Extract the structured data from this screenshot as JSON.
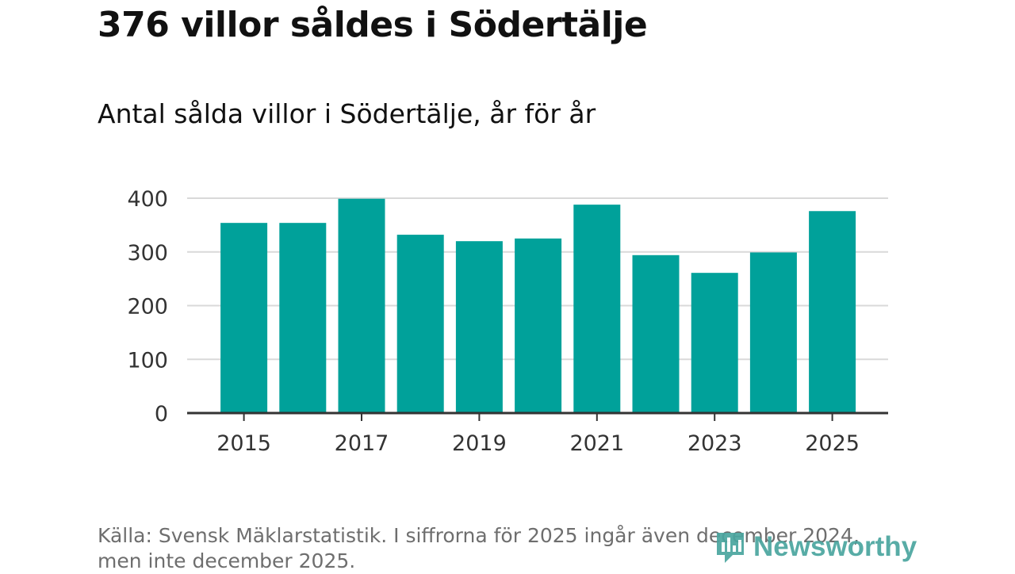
{
  "header": {
    "title": "376 villor såldes i Södertälje",
    "subtitle": "Antal sålda villor i Södertälje, år för år"
  },
  "chart_data": {
    "type": "bar",
    "categories": [
      "2015",
      "2016",
      "2017",
      "2018",
      "2019",
      "2020",
      "2021",
      "2022",
      "2023",
      "2024",
      "2025"
    ],
    "values": [
      354,
      354,
      399,
      332,
      320,
      325,
      388,
      294,
      261,
      299,
      376
    ],
    "x_tick_labels": [
      "2015",
      "2017",
      "2019",
      "2021",
      "2023",
      "2025"
    ],
    "y_ticks": [
      0,
      100,
      200,
      300,
      400
    ],
    "ylim": [
      0,
      400
    ],
    "grid": true,
    "bar_color": "#00a19a",
    "title": "",
    "xlabel": "",
    "ylabel": ""
  },
  "footer": {
    "source_line1": "Källa: Svensk Mäklarstatistik. I siffrorna för 2025 ingår även december 2024,",
    "source_line2": "men inte december 2025.",
    "brand": "Newsworthy",
    "brand_icon": "newsworthy-logo-icon"
  }
}
